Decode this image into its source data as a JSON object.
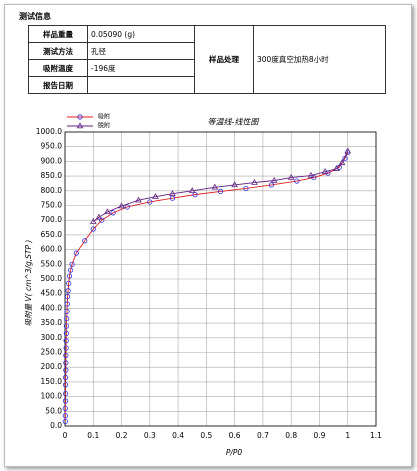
{
  "section_title": "测试信息",
  "table": {
    "rows": [
      [
        "样品重量",
        "0.05090 (g)"
      ],
      [
        "测试方法",
        "孔径"
      ],
      [
        "吸附温度",
        "-196度"
      ],
      [
        "报告日期"
      ]
    ],
    "side_label": "样品处理",
    "side_value": "300度真空加热8小时"
  },
  "chart_data": {
    "type": "line",
    "title": "等温线-线性图",
    "x_label": "P/P0",
    "y_label": "吸附量 V( cm^3/g,STP )",
    "xlim": [
      0,
      1.1
    ],
    "xticks": [
      0,
      0.1,
      0.2,
      0.3,
      0.4,
      0.5,
      0.6,
      0.7,
      0.8,
      0.9,
      1,
      1.1
    ],
    "ylim": [
      0,
      1000
    ],
    "yticks": [
      {
        "value": 0,
        "label": "0.0"
      },
      {
        "value": 50,
        "label": "50.0"
      },
      {
        "value": 100,
        "label": "100.0"
      },
      {
        "value": 150,
        "label": "150.0"
      },
      {
        "value": 200,
        "label": "200.0"
      },
      {
        "value": 250,
        "label": "250.0"
      },
      {
        "value": 300,
        "label": "300.0"
      },
      {
        "value": 350,
        "label": "350.0"
      },
      {
        "value": 400,
        "label": "400.0"
      },
      {
        "value": 450,
        "label": "450.0"
      },
      {
        "value": 500,
        "label": "500.0"
      },
      {
        "value": 550,
        "label": "550.0"
      },
      {
        "value": 600,
        "label": "600.0"
      },
      {
        "value": 650,
        "label": "650.0"
      },
      {
        "value": 700,
        "label": "700.0"
      },
      {
        "value": 750,
        "label": "750.0"
      },
      {
        "value": 800,
        "label": "800.0"
      },
      {
        "value": 850,
        "label": "850.0"
      },
      {
        "value": 900,
        "label": "900.0"
      },
      {
        "value": 950,
        "label": "950.0"
      },
      {
        "value": 1000,
        "label": "1000.0"
      }
    ],
    "grid": true,
    "series": [
      {
        "name": "吸附",
        "color": "#e02020",
        "marker_color": "#3030e0",
        "marker": "circle",
        "x": [
          0.001,
          0.001,
          0.001,
          0.002,
          0.002,
          0.002,
          0.002,
          0.003,
          0.003,
          0.003,
          0.004,
          0.004,
          0.005,
          0.005,
          0.006,
          0.007,
          0.008,
          0.009,
          0.011,
          0.013,
          0.016,
          0.02,
          0.025,
          0.04,
          0.07,
          0.1,
          0.13,
          0.17,
          0.22,
          0.3,
          0.38,
          0.46,
          0.55,
          0.64,
          0.73,
          0.82,
          0.88,
          0.93,
          0.97,
          0.99,
          1.0
        ],
        "values": [
          15,
          35,
          60,
          85,
          110,
          140,
          165,
          190,
          215,
          240,
          265,
          290,
          315,
          340,
          365,
          390,
          415,
          440,
          460,
          485,
          510,
          530,
          550,
          588,
          630,
          670,
          700,
          725,
          745,
          762,
          775,
          787,
          798,
          808,
          820,
          833,
          845,
          860,
          880,
          910,
          930
        ]
      },
      {
        "name": "脱附",
        "color": "#602080",
        "marker_color": "#602080",
        "marker": "triangle",
        "x": [
          1.0,
          0.98,
          0.96,
          0.92,
          0.87,
          0.8,
          0.74,
          0.67,
          0.6,
          0.53,
          0.45,
          0.38,
          0.32,
          0.26,
          0.2,
          0.15,
          0.12,
          0.1
        ],
        "values": [
          935,
          895,
          875,
          865,
          852,
          845,
          835,
          828,
          820,
          812,
          800,
          790,
          780,
          768,
          748,
          728,
          710,
          695
        ]
      }
    ]
  }
}
